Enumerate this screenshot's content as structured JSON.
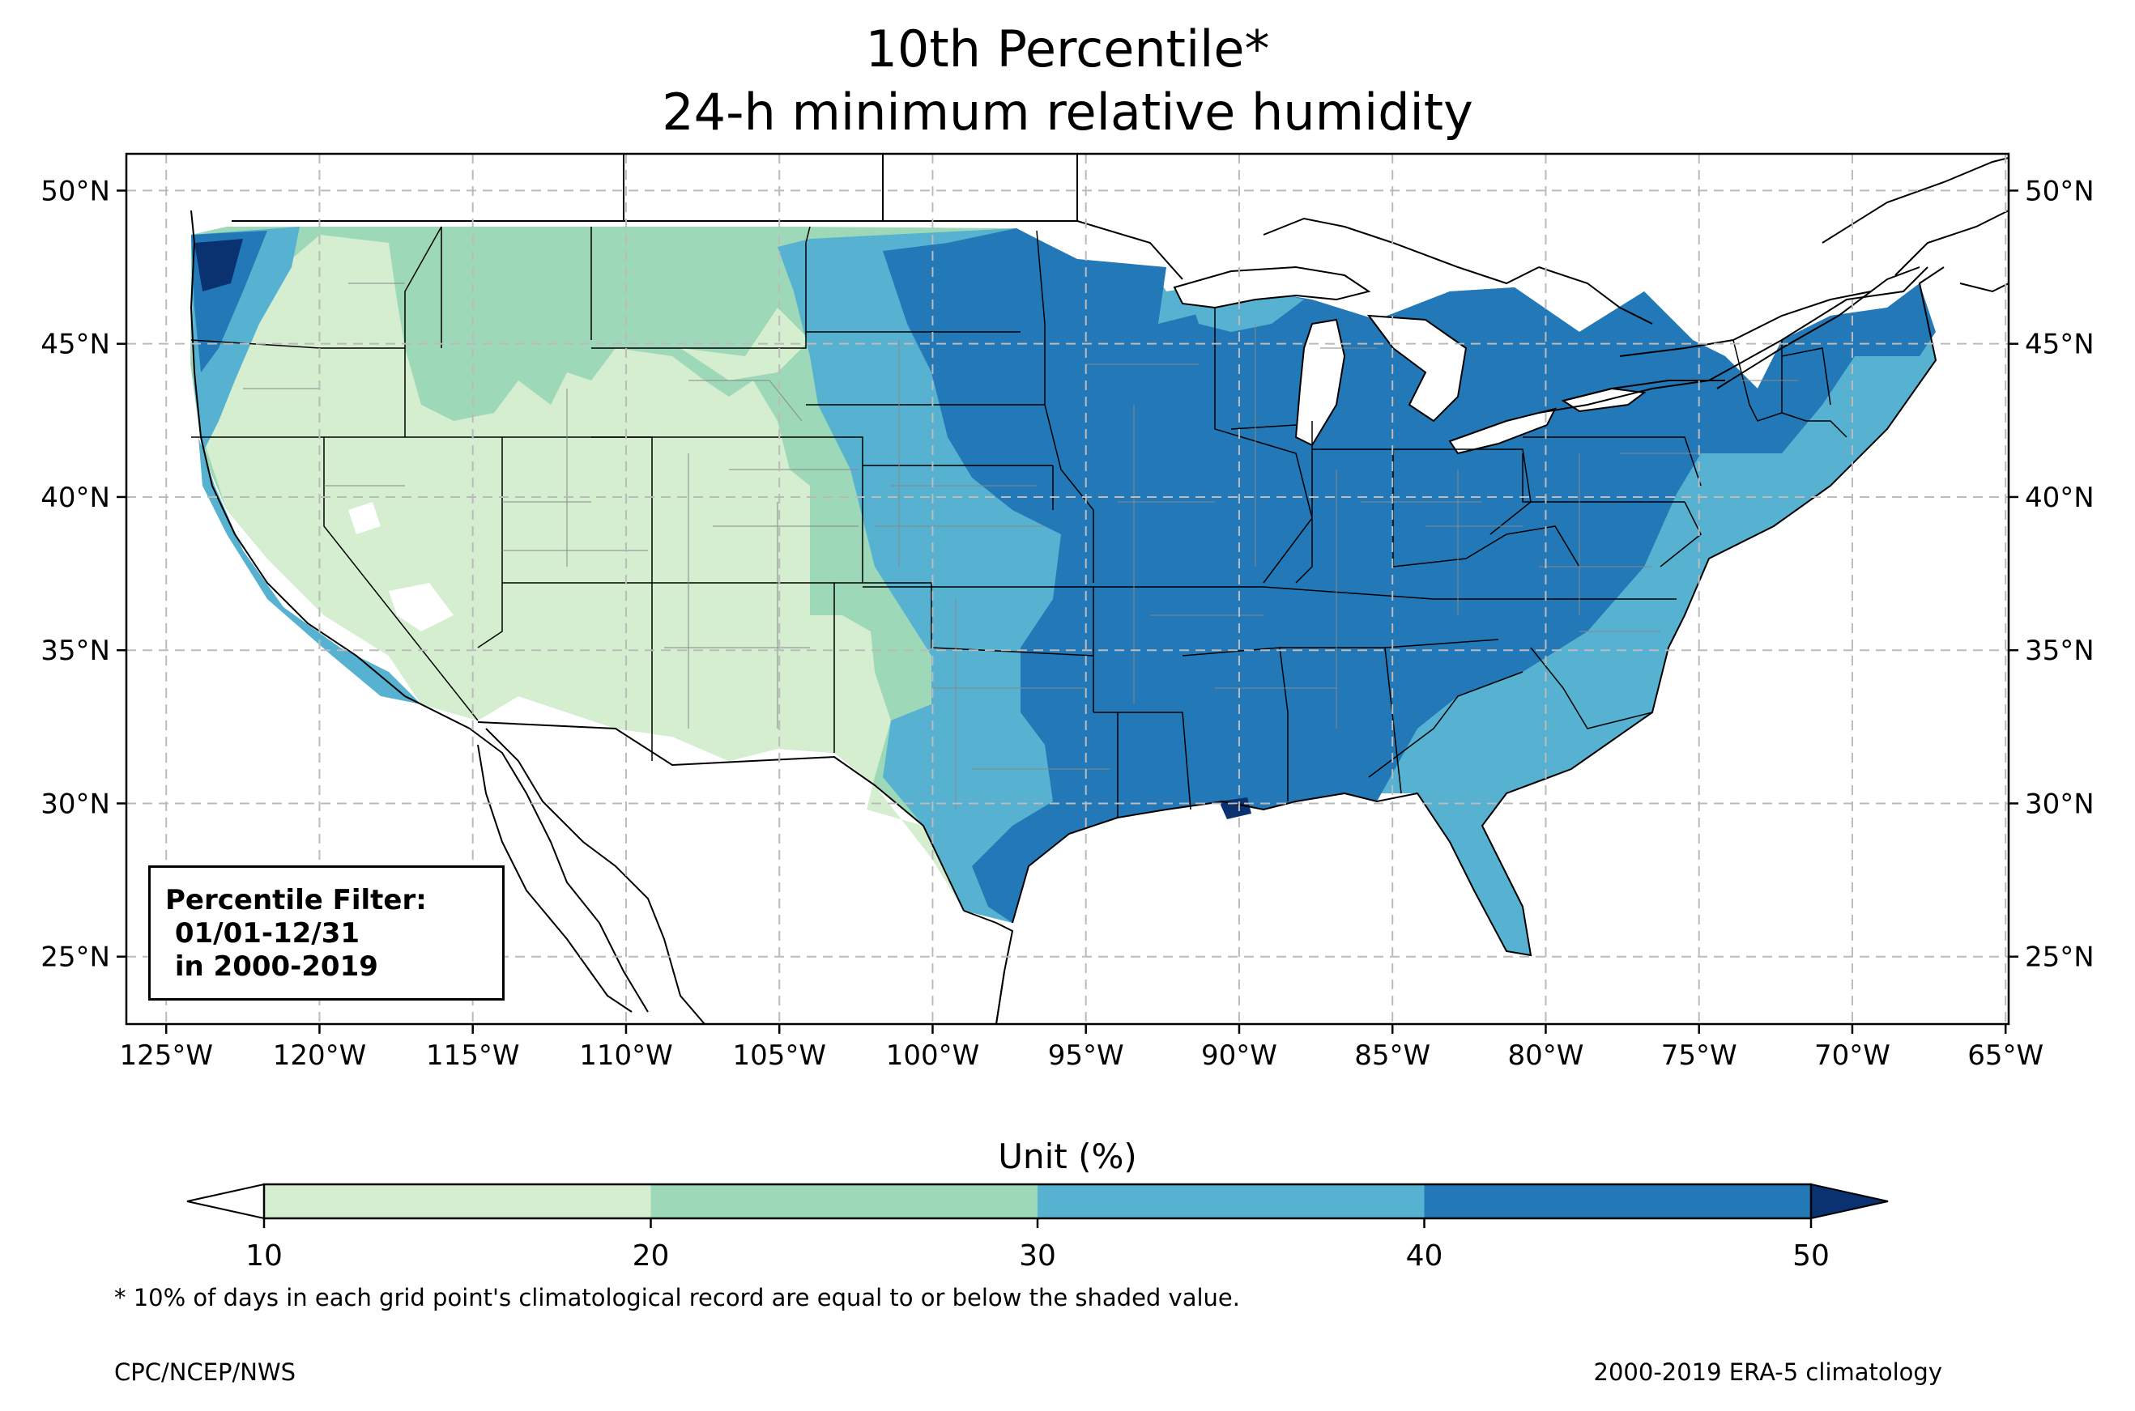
{
  "title": {
    "line1": "10th Percentile*",
    "line2": "24-h minimum relative humidity"
  },
  "axes": {
    "lon_labels": [
      "125°W",
      "120°W",
      "115°W",
      "110°W",
      "105°W",
      "100°W",
      "95°W",
      "90°W",
      "85°W",
      "80°W",
      "75°W",
      "70°W",
      "65°W"
    ],
    "lat_labels": [
      "50°N",
      "45°N",
      "40°N",
      "35°N",
      "30°N",
      "25°N"
    ],
    "lon_values": [
      -125,
      -120,
      -115,
      -110,
      -105,
      -100,
      -95,
      -90,
      -85,
      -80,
      -75,
      -70,
      -65
    ],
    "lat_values": [
      50,
      45,
      40,
      35,
      30,
      25
    ],
    "lon_range": [
      -126.3,
      -64.9
    ],
    "lat_range": [
      22.8,
      51.2
    ],
    "grid": true
  },
  "filter_box": {
    "line1": "Percentile Filter:",
    "line2": " 01/01-12/31",
    "line3": " in 2000-2019"
  },
  "colorbar": {
    "label": "Unit (%)",
    "ticks": [
      "10",
      "20",
      "30",
      "40",
      "50"
    ],
    "bins": [
      {
        "range": "<10",
        "color": "#ffffff"
      },
      {
        "range": "10-20",
        "color": "#d4eecf"
      },
      {
        "range": "20-30",
        "color": "#9dd9b8"
      },
      {
        "range": "30-40",
        "color": "#56b2d0"
      },
      {
        "range": "40-50",
        "color": "#2379b7"
      },
      {
        "range": ">50",
        "color": "#0b3270"
      }
    ]
  },
  "footnote": "* 10% of days in each grid point's climatological record are equal to or below the shaded value.",
  "credit": "CPC/NCEP/NWS",
  "climatology": "2000-2019 ERA-5 climatology"
}
